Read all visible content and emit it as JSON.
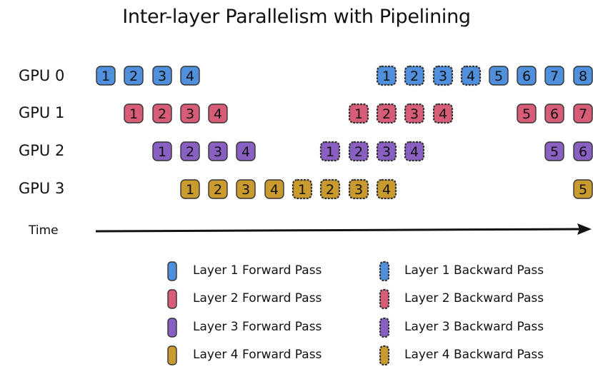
{
  "title": "Inter-layer Parallelism with Pipelining",
  "time_label": "Time",
  "colors": {
    "layer1": "#4f8fdc",
    "layer2": "#d75c77",
    "layer3": "#8a5fc2",
    "layer4": "#c99a2e",
    "border": "#333333",
    "text": "#111111"
  },
  "gpus": [
    {
      "label": "GPU 0",
      "blocks": [
        {
          "text": "1",
          "layer": 1,
          "pass": "forward"
        },
        {
          "text": "2",
          "layer": 1,
          "pass": "forward"
        },
        {
          "text": "3",
          "layer": 1,
          "pass": "forward"
        },
        {
          "text": "4",
          "layer": 1,
          "pass": "forward"
        },
        {
          "text": "1",
          "layer": 1,
          "pass": "backward"
        },
        {
          "text": "2",
          "layer": 1,
          "pass": "backward"
        },
        {
          "text": "3",
          "layer": 1,
          "pass": "backward"
        },
        {
          "text": "4",
          "layer": 1,
          "pass": "backward"
        },
        {
          "text": "5",
          "layer": 1,
          "pass": "forward"
        },
        {
          "text": "6",
          "layer": 1,
          "pass": "forward"
        },
        {
          "text": "7",
          "layer": 1,
          "pass": "forward"
        },
        {
          "text": "8",
          "layer": 1,
          "pass": "forward"
        }
      ]
    },
    {
      "label": "GPU 1",
      "blocks": [
        {
          "text": "1",
          "layer": 2,
          "pass": "forward"
        },
        {
          "text": "2",
          "layer": 2,
          "pass": "forward"
        },
        {
          "text": "3",
          "layer": 2,
          "pass": "forward"
        },
        {
          "text": "4",
          "layer": 2,
          "pass": "forward"
        },
        {
          "text": "1",
          "layer": 2,
          "pass": "backward"
        },
        {
          "text": "2",
          "layer": 2,
          "pass": "backward"
        },
        {
          "text": "3",
          "layer": 2,
          "pass": "backward"
        },
        {
          "text": "4",
          "layer": 2,
          "pass": "backward"
        },
        {
          "text": "5",
          "layer": 2,
          "pass": "forward"
        },
        {
          "text": "6",
          "layer": 2,
          "pass": "forward"
        },
        {
          "text": "7",
          "layer": 2,
          "pass": "forward"
        }
      ]
    },
    {
      "label": "GPU 2",
      "blocks": [
        {
          "text": "1",
          "layer": 3,
          "pass": "forward"
        },
        {
          "text": "2",
          "layer": 3,
          "pass": "forward"
        },
        {
          "text": "3",
          "layer": 3,
          "pass": "forward"
        },
        {
          "text": "4",
          "layer": 3,
          "pass": "forward"
        },
        {
          "text": "1",
          "layer": 3,
          "pass": "backward"
        },
        {
          "text": "2",
          "layer": 3,
          "pass": "backward"
        },
        {
          "text": "3",
          "layer": 3,
          "pass": "backward"
        },
        {
          "text": "4",
          "layer": 3,
          "pass": "backward"
        },
        {
          "text": "5",
          "layer": 3,
          "pass": "forward"
        },
        {
          "text": "6",
          "layer": 3,
          "pass": "forward"
        }
      ]
    },
    {
      "label": "GPU 3",
      "blocks": [
        {
          "text": "1",
          "layer": 4,
          "pass": "forward"
        },
        {
          "text": "2",
          "layer": 4,
          "pass": "forward"
        },
        {
          "text": "3",
          "layer": 4,
          "pass": "forward"
        },
        {
          "text": "4",
          "layer": 4,
          "pass": "forward"
        },
        {
          "text": "1",
          "layer": 4,
          "pass": "backward"
        },
        {
          "text": "2",
          "layer": 4,
          "pass": "backward"
        },
        {
          "text": "3",
          "layer": 4,
          "pass": "backward"
        },
        {
          "text": "4",
          "layer": 4,
          "pass": "backward"
        },
        {
          "text": "5",
          "layer": 4,
          "pass": "forward"
        }
      ]
    }
  ],
  "legend": [
    {
      "label": "Layer 1 Forward Pass",
      "layer": 1,
      "pass": "forward"
    },
    {
      "label": "Layer 1 Backward Pass",
      "layer": 1,
      "pass": "backward"
    },
    {
      "label": "Layer 2 Forward Pass",
      "layer": 2,
      "pass": "forward"
    },
    {
      "label": "Layer 2 Backward Pass",
      "layer": 2,
      "pass": "backward"
    },
    {
      "label": "Layer 3 Forward Pass",
      "layer": 3,
      "pass": "forward"
    },
    {
      "label": "Layer 3 Backward Pass",
      "layer": 3,
      "pass": "backward"
    },
    {
      "label": "Layer 4 Forward Pass",
      "layer": 4,
      "pass": "forward"
    },
    {
      "label": "Layer 4 Backward Pass",
      "layer": 4,
      "pass": "backward"
    }
  ]
}
